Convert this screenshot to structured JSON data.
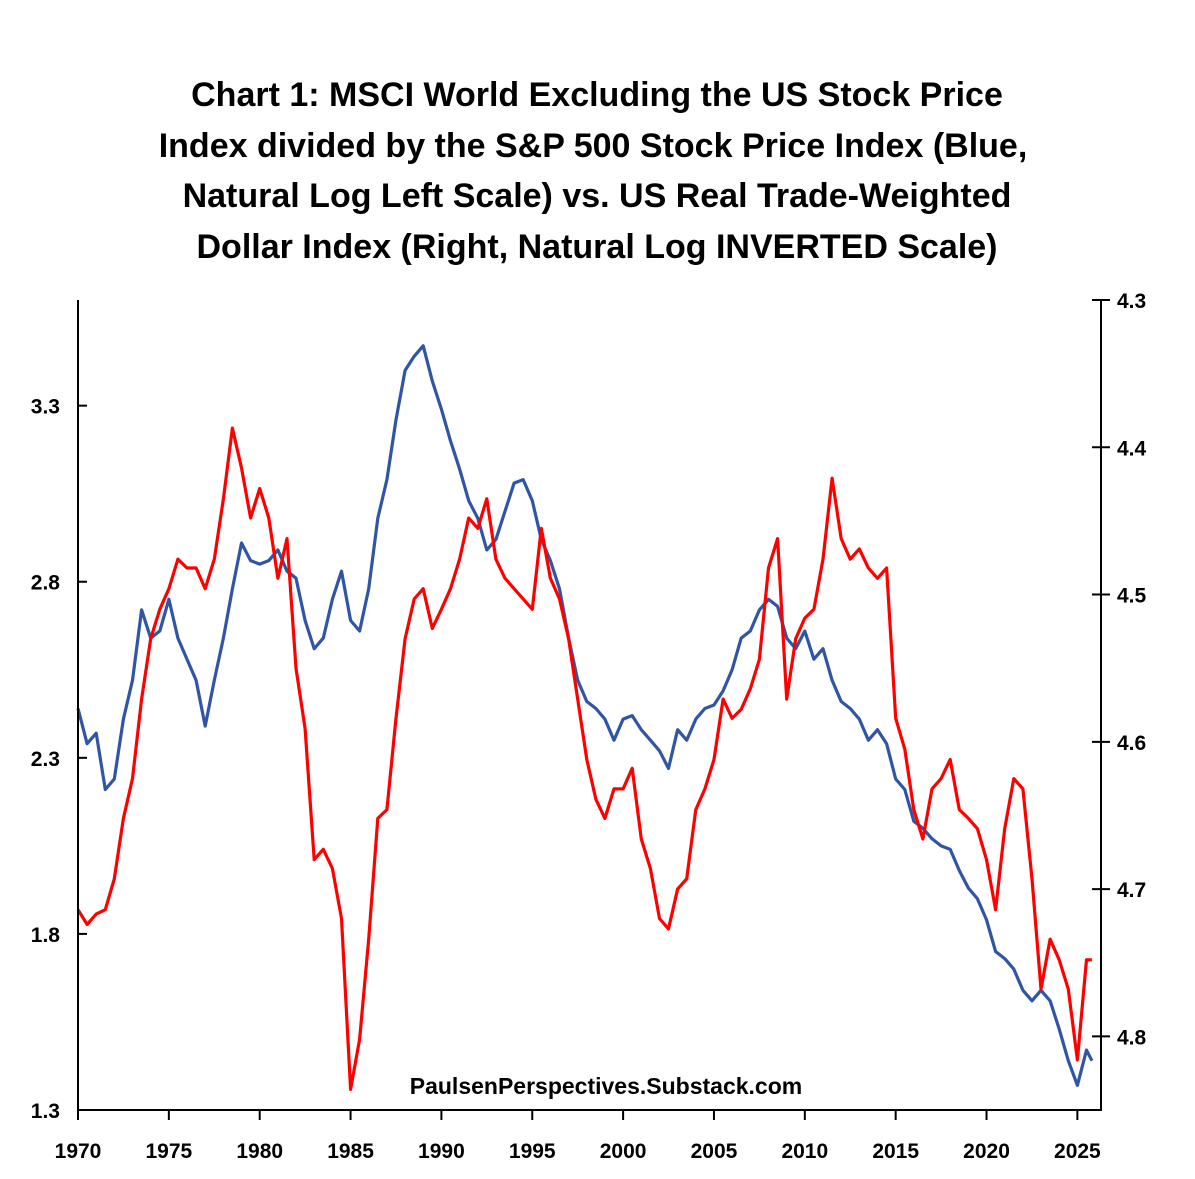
{
  "chart_data": {
    "type": "line",
    "title": [
      "Chart 1: MSCI World Excluding the US Stock Price",
      "Index divided by the S&P 500 Stock Price Index  (Blue,",
      "Natural Log Left Scale) vs. US Real Trade-Weighted",
      "Dollar Index (Right, Natural Log INVERTED Scale)"
    ],
    "watermark": "PaulsenPerspectives.Substack.com",
    "xlabel": "",
    "x_ticks": [
      "1970",
      "1975",
      "1980",
      "1985",
      "1990",
      "1995",
      "2000",
      "2005",
      "2010",
      "2015",
      "2020",
      "2025"
    ],
    "xlim": [
      1970,
      2026.3
    ],
    "y_left": {
      "label": "",
      "ticks": [
        "1.3",
        "1.8",
        "2.3",
        "2.8",
        "3.3"
      ],
      "ylim": [
        1.3,
        3.6
      ]
    },
    "y_right": {
      "label": "",
      "inverted": true,
      "ticks": [
        "4.3",
        "4.4",
        "4.5",
        "4.6",
        "4.7",
        "4.8"
      ],
      "ylim": [
        4.3,
        4.85
      ]
    },
    "grid": false,
    "x": [
      1970,
      1970.5,
      1971,
      1971.5,
      1972,
      1972.5,
      1973,
      1973.5,
      1974,
      1974.5,
      1975,
      1975.5,
      1976,
      1976.5,
      1977,
      1977.5,
      1978,
      1978.5,
      1979,
      1979.5,
      1980,
      1980.5,
      1981,
      1981.5,
      1982,
      1982.5,
      1983,
      1983.5,
      1984,
      1984.5,
      1985,
      1985.5,
      1986,
      1986.5,
      1987,
      1987.5,
      1988,
      1988.5,
      1989,
      1989.5,
      1990,
      1990.5,
      1991,
      1991.5,
      1992,
      1992.5,
      1993,
      1993.5,
      1994,
      1994.5,
      1995,
      1995.5,
      1996,
      1996.5,
      1997,
      1997.5,
      1998,
      1998.5,
      1999,
      1999.5,
      2000,
      2000.5,
      2001,
      2001.5,
      2002,
      2002.5,
      2003,
      2003.5,
      2004,
      2004.5,
      2005,
      2005.5,
      2006,
      2006.5,
      2007,
      2007.5,
      2008,
      2008.5,
      2009,
      2009.5,
      2010,
      2010.5,
      2011,
      2011.5,
      2012,
      2012.5,
      2013,
      2013.5,
      2014,
      2014.5,
      2015,
      2015.5,
      2016,
      2016.5,
      2017,
      2017.5,
      2018,
      2018.5,
      2019,
      2019.5,
      2020,
      2020.5,
      2021,
      2021.5,
      2022,
      2022.5,
      2023,
      2023.5,
      2024,
      2024.5,
      2025,
      2025.5,
      2025.8
    ],
    "series": [
      {
        "name": "MSCI World ex-US / S&P 500 (ln, left)",
        "axis": "left",
        "color": "#2f55a4",
        "values": [
          2.44,
          2.34,
          2.37,
          2.21,
          2.24,
          2.41,
          2.52,
          2.72,
          2.64,
          2.66,
          2.75,
          2.64,
          2.58,
          2.52,
          2.39,
          2.52,
          2.64,
          2.78,
          2.91,
          2.86,
          2.85,
          2.86,
          2.89,
          2.83,
          2.81,
          2.69,
          2.61,
          2.64,
          2.75,
          2.83,
          2.69,
          2.66,
          2.78,
          2.98,
          3.09,
          3.26,
          3.4,
          3.44,
          3.47,
          3.37,
          3.29,
          3.2,
          3.12,
          3.03,
          2.98,
          2.89,
          2.92,
          3.0,
          3.08,
          3.09,
          3.03,
          2.92,
          2.86,
          2.78,
          2.64,
          2.52,
          2.46,
          2.44,
          2.41,
          2.35,
          2.41,
          2.42,
          2.38,
          2.35,
          2.32,
          2.27,
          2.38,
          2.35,
          2.41,
          2.44,
          2.45,
          2.49,
          2.55,
          2.64,
          2.66,
          2.72,
          2.75,
          2.73,
          2.64,
          2.61,
          2.66,
          2.58,
          2.61,
          2.52,
          2.46,
          2.44,
          2.41,
          2.35,
          2.38,
          2.34,
          2.24,
          2.21,
          2.12,
          2.1,
          2.07,
          2.05,
          2.04,
          1.98,
          1.93,
          1.9,
          1.84,
          1.75,
          1.73,
          1.7,
          1.64,
          1.61,
          1.64,
          1.61,
          1.53,
          1.44,
          1.37,
          1.47,
          1.44
        ]
      },
      {
        "name": "US Real Trade-Weighted Dollar (ln, right, inverted)",
        "axis": "right",
        "color": "#ff0000",
        "values": [
          4.714,
          4.724,
          4.717,
          4.714,
          4.693,
          4.652,
          4.625,
          4.571,
          4.53,
          4.51,
          4.496,
          4.476,
          4.482,
          4.482,
          4.496,
          4.476,
          4.435,
          4.387,
          4.414,
          4.448,
          4.428,
          4.448,
          4.489,
          4.462,
          4.55,
          4.591,
          4.68,
          4.673,
          4.686,
          4.72,
          4.836,
          4.802,
          4.734,
          4.652,
          4.646,
          4.584,
          4.53,
          4.503,
          4.496,
          4.523,
          4.51,
          4.496,
          4.476,
          4.448,
          4.455,
          4.435,
          4.476,
          4.489,
          4.496,
          4.503,
          4.51,
          4.455,
          4.489,
          4.503,
          4.53,
          4.571,
          4.612,
          4.639,
          4.652,
          4.632,
          4.632,
          4.618,
          4.666,
          4.686,
          4.72,
          4.727,
          4.7,
          4.693,
          4.646,
          4.632,
          4.612,
          4.571,
          4.584,
          4.578,
          4.564,
          4.544,
          4.482,
          4.462,
          4.571,
          4.53,
          4.516,
          4.51,
          4.476,
          4.421,
          4.462,
          4.476,
          4.469,
          4.482,
          4.489,
          4.482,
          4.584,
          4.605,
          4.646,
          4.666,
          4.632,
          4.625,
          4.612,
          4.646,
          4.652,
          4.659,
          4.68,
          4.714,
          4.659,
          4.625,
          4.632,
          4.693,
          4.768,
          4.734,
          4.748,
          4.768,
          4.816,
          4.748,
          4.748
        ]
      }
    ]
  }
}
